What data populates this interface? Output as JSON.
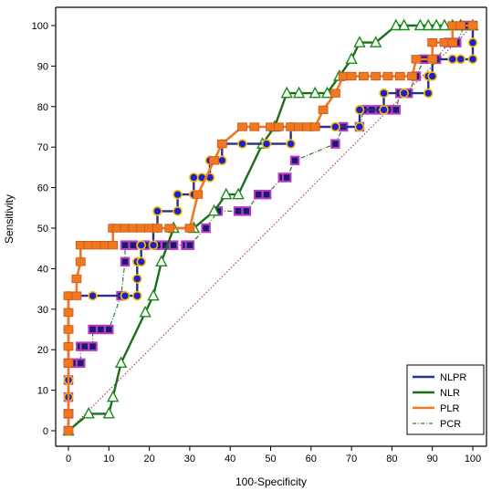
{
  "chart_data": {
    "type": "line",
    "title": "",
    "xlabel": "100-Specificity",
    "ylabel": "Sensitivity",
    "xlim": [
      0,
      100
    ],
    "ylim": [
      0,
      100
    ],
    "x_ticks": [
      0,
      10,
      20,
      30,
      40,
      50,
      60,
      70,
      80,
      90,
      100
    ],
    "y_ticks": [
      0,
      10,
      20,
      30,
      40,
      50,
      60,
      70,
      80,
      90,
      100
    ],
    "x_tick_labels": [
      "0",
      "10",
      "20",
      "30",
      "40",
      "50",
      "60",
      "70",
      "80",
      "90",
      "100"
    ],
    "y_tick_labels": [
      "0",
      "10",
      "20",
      "30",
      "40",
      "50",
      "60",
      "70",
      "80",
      "90",
      "100"
    ],
    "legend_position": "bottom-right",
    "reference_line": {
      "from": [
        0,
        0
      ],
      "to": [
        100,
        100
      ],
      "color": "#b22222",
      "style": "dotted"
    },
    "series": [
      {
        "name": "NLPR",
        "color": "#2b2f8f",
        "marker": "circle",
        "marker_fill": "#1f1fcc",
        "marker_stroke": "#f2c200",
        "points": [
          [
            0,
            0
          ],
          [
            0,
            4.2
          ],
          [
            0,
            8.3
          ],
          [
            0,
            12.5
          ],
          [
            0,
            16.7
          ],
          [
            0,
            20.8
          ],
          [
            0,
            25
          ],
          [
            0,
            29.2
          ],
          [
            0,
            33.3
          ],
          [
            6,
            33.3
          ],
          [
            14,
            33.3
          ],
          [
            17,
            33.3
          ],
          [
            17,
            37.5
          ],
          [
            17,
            41.7
          ],
          [
            18,
            41.7
          ],
          [
            18,
            45.8
          ],
          [
            21,
            45.8
          ],
          [
            21,
            50
          ],
          [
            22,
            50
          ],
          [
            22,
            54.2
          ],
          [
            27,
            54.2
          ],
          [
            27,
            58.3
          ],
          [
            31,
            58.3
          ],
          [
            31,
            62.5
          ],
          [
            33,
            62.5
          ],
          [
            35,
            62.5
          ],
          [
            35,
            66.7
          ],
          [
            38,
            66.7
          ],
          [
            38,
            70.8
          ],
          [
            43,
            70.8
          ],
          [
            49,
            70.8
          ],
          [
            55,
            70.8
          ],
          [
            55,
            75
          ],
          [
            60,
            75
          ],
          [
            66,
            75
          ],
          [
            72,
            75
          ],
          [
            72,
            79.2
          ],
          [
            78,
            79.2
          ],
          [
            78,
            83.3
          ],
          [
            83,
            83.3
          ],
          [
            89,
            83.3
          ],
          [
            89,
            87.5
          ],
          [
            90,
            87.5
          ],
          [
            90,
            91.7
          ],
          [
            95,
            91.7
          ],
          [
            97,
            91.7
          ],
          [
            100,
            91.7
          ],
          [
            100,
            95.8
          ],
          [
            100,
            100
          ]
        ]
      },
      {
        "name": "NLR",
        "color": "#1a6e1a",
        "marker": "triangle",
        "marker_fill": "#ffffff",
        "marker_stroke": "#1a8c1a",
        "points": [
          [
            0,
            0
          ],
          [
            5,
            4.2
          ],
          [
            10,
            4.2
          ],
          [
            11,
            8.3
          ],
          [
            13,
            16.7
          ],
          [
            19,
            29.2
          ],
          [
            21,
            33.3
          ],
          [
            23,
            41.7
          ],
          [
            26,
            50
          ],
          [
            31,
            50
          ],
          [
            36,
            54.2
          ],
          [
            39,
            58.3
          ],
          [
            42,
            58.3
          ],
          [
            48,
            70.8
          ],
          [
            51,
            75
          ],
          [
            54,
            83.3
          ],
          [
            57,
            83.3
          ],
          [
            61,
            83.3
          ],
          [
            64,
            83.3
          ],
          [
            67,
            87.5
          ],
          [
            70,
            91.7
          ],
          [
            72,
            95.8
          ],
          [
            76,
            95.8
          ],
          [
            81,
            100
          ],
          [
            83,
            100
          ],
          [
            87,
            100
          ],
          [
            89,
            100
          ],
          [
            91,
            100
          ],
          [
            93,
            100
          ],
          [
            95,
            100
          ],
          [
            97,
            100
          ],
          [
            100,
            100
          ]
        ]
      },
      {
        "name": "PLR",
        "color": "#f07820",
        "marker": "square",
        "marker_fill": "#f07820",
        "marker_stroke": "#f07820",
        "points": [
          [
            0,
            0
          ],
          [
            0,
            4.2
          ],
          [
            0,
            16.7
          ],
          [
            0,
            20.8
          ],
          [
            0,
            25
          ],
          [
            0,
            29.2
          ],
          [
            0,
            33.3
          ],
          [
            2,
            33.3
          ],
          [
            2,
            37.5
          ],
          [
            3,
            41.7
          ],
          [
            3,
            45.8
          ],
          [
            5,
            45.8
          ],
          [
            7,
            45.8
          ],
          [
            9,
            45.8
          ],
          [
            11,
            45.8
          ],
          [
            11,
            50
          ],
          [
            12,
            50
          ],
          [
            14,
            50
          ],
          [
            16,
            50
          ],
          [
            18,
            50
          ],
          [
            20,
            50
          ],
          [
            22,
            50
          ],
          [
            25,
            50
          ],
          [
            30,
            50
          ],
          [
            32,
            58.3
          ],
          [
            36,
            66.7
          ],
          [
            38,
            70.8
          ],
          [
            43,
            75
          ],
          [
            46,
            75
          ],
          [
            50,
            75
          ],
          [
            52,
            75
          ],
          [
            55,
            75
          ],
          [
            57,
            75
          ],
          [
            59,
            75
          ],
          [
            61,
            75
          ],
          [
            63,
            79.2
          ],
          [
            66,
            83.3
          ],
          [
            68,
            87.5
          ],
          [
            70,
            87.5
          ],
          [
            73,
            87.5
          ],
          [
            76,
            87.5
          ],
          [
            79,
            87.5
          ],
          [
            82,
            87.5
          ],
          [
            85,
            87.5
          ],
          [
            86,
            91.7
          ],
          [
            90,
            91.7
          ],
          [
            90,
            95.8
          ],
          [
            93,
            95.8
          ],
          [
            95,
            95.8
          ],
          [
            95,
            100
          ],
          [
            97,
            100
          ],
          [
            100,
            100
          ]
        ]
      },
      {
        "name": "PCR",
        "color": "#2e7d32",
        "marker": "square",
        "marker_fill": "#1a1a6e",
        "marker_stroke": "#b93cc4",
        "points": [
          [
            0,
            0
          ],
          [
            0,
            4.2
          ],
          [
            0,
            8.3
          ],
          [
            0,
            12.5
          ],
          [
            0,
            16.7
          ],
          [
            1,
            16.7
          ],
          [
            3,
            16.7
          ],
          [
            3,
            20.8
          ],
          [
            4,
            20.8
          ],
          [
            6,
            20.8
          ],
          [
            6,
            25
          ],
          [
            8,
            25
          ],
          [
            10,
            25
          ],
          [
            13,
            33.3
          ],
          [
            14,
            41.7
          ],
          [
            14,
            45.8
          ],
          [
            16,
            45.8
          ],
          [
            19,
            45.8
          ],
          [
            22,
            45.8
          ],
          [
            24,
            45.8
          ],
          [
            26,
            45.8
          ],
          [
            29,
            45.8
          ],
          [
            30,
            45.8
          ],
          [
            34,
            50
          ],
          [
            37,
            54.2
          ],
          [
            42,
            54.2
          ],
          [
            44,
            54.2
          ],
          [
            47,
            58.3
          ],
          [
            49,
            58.3
          ],
          [
            53,
            62.5
          ],
          [
            54,
            62.5
          ],
          [
            56,
            66.7
          ],
          [
            66,
            70.8
          ],
          [
            68,
            75
          ],
          [
            72,
            75
          ],
          [
            73,
            79.2
          ],
          [
            75,
            79.2
          ],
          [
            77,
            79.2
          ],
          [
            79,
            79.2
          ],
          [
            81,
            79.2
          ],
          [
            82,
            83.3
          ],
          [
            84,
            83.3
          ],
          [
            86,
            87.5
          ],
          [
            88,
            91.7
          ],
          [
            91,
            91.7
          ],
          [
            94,
            95.8
          ],
          [
            96,
            95.8
          ],
          [
            98,
            100
          ],
          [
            100,
            100
          ]
        ]
      }
    ]
  }
}
